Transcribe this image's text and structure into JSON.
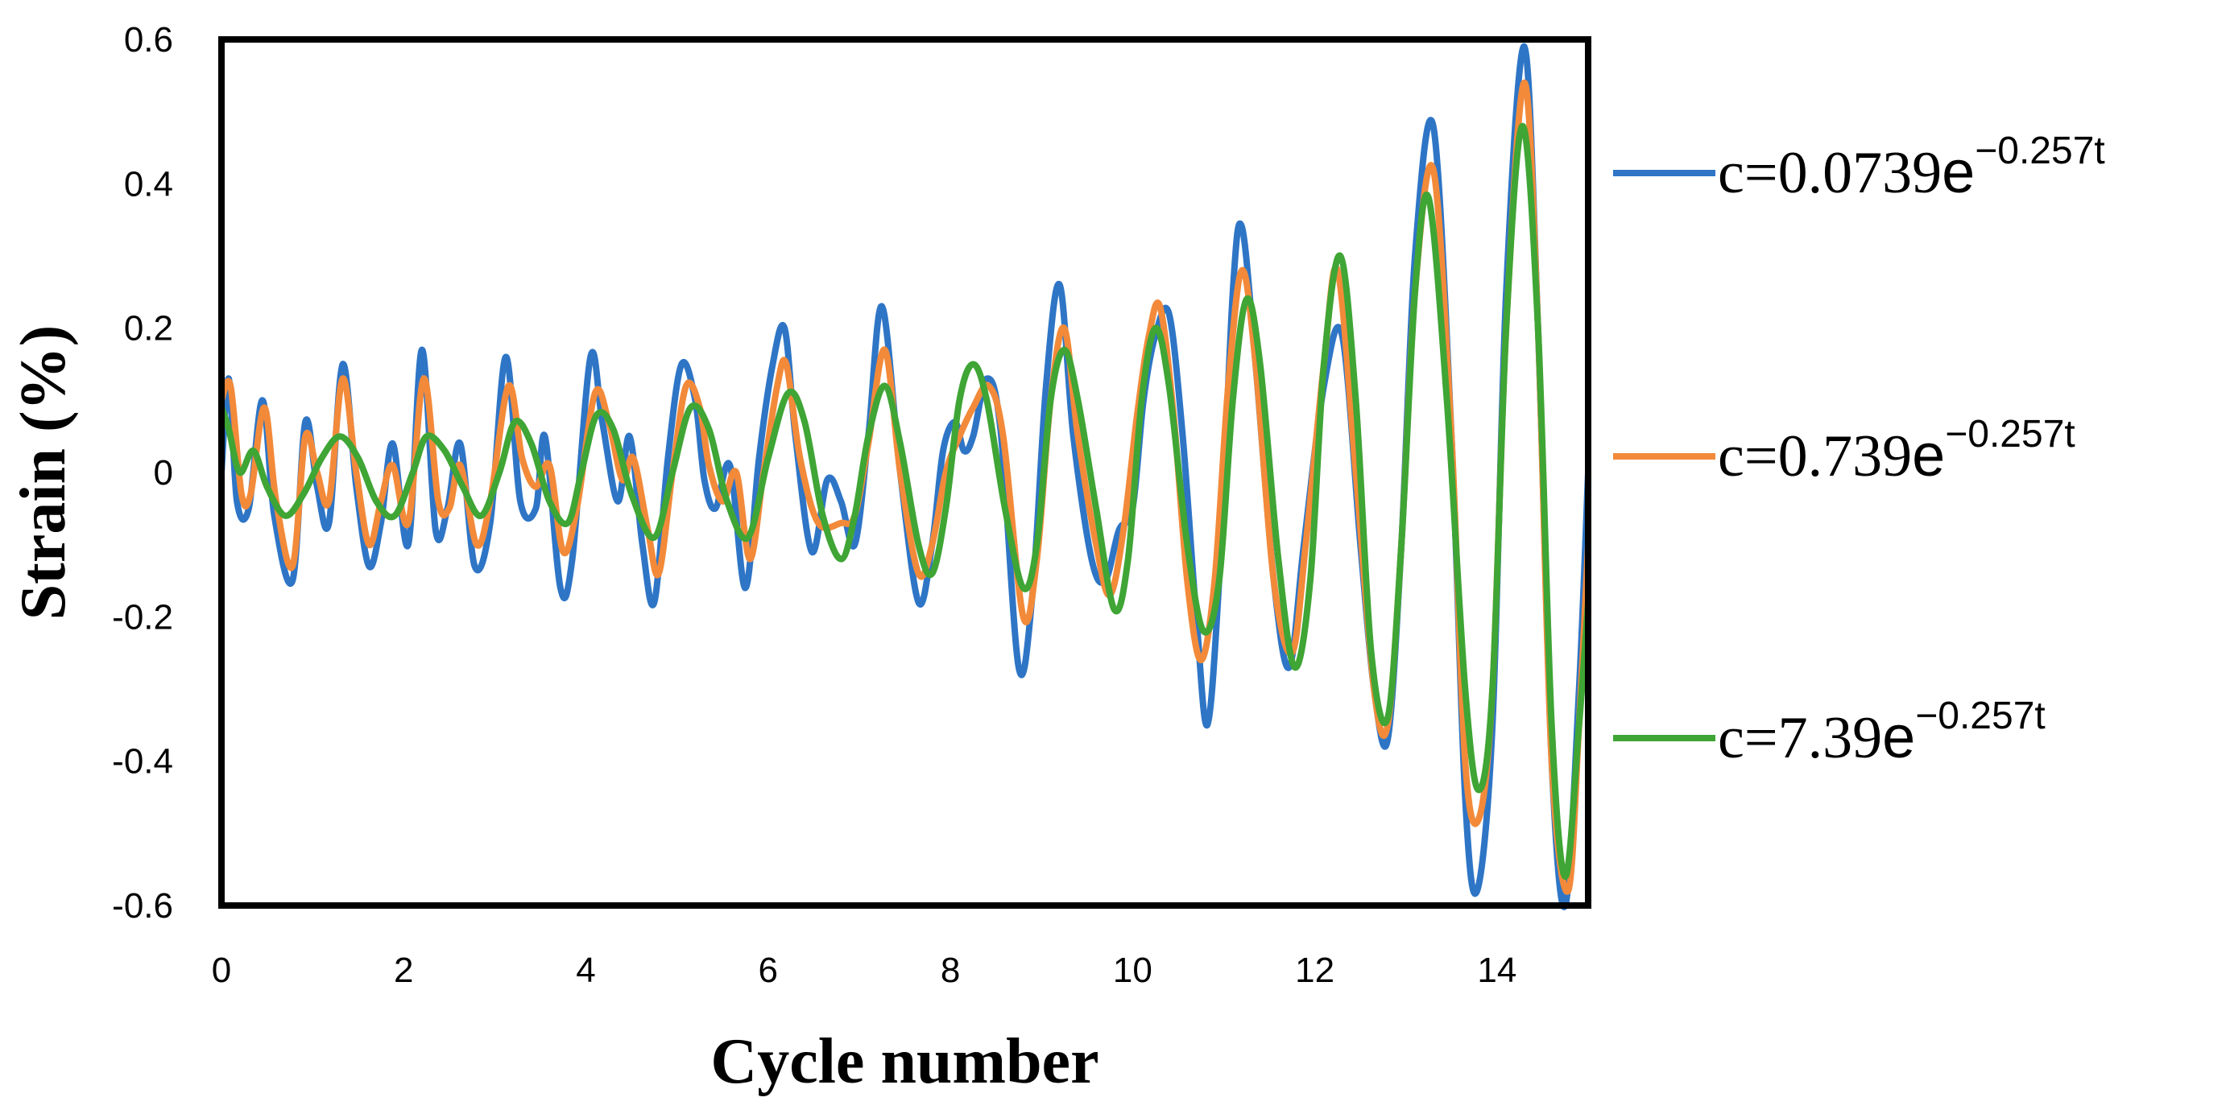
{
  "chart_data": {
    "type": "line",
    "title": "",
    "xlabel": "Cycle number",
    "ylabel": "Strain (%)",
    "xlim": [
      0,
      15
    ],
    "ylim": [
      -0.6,
      0.6
    ],
    "x_ticks": [
      0,
      2,
      4,
      6,
      8,
      10,
      12,
      14
    ],
    "x_tick_labels": [
      "0",
      "2",
      "4",
      "6",
      "8",
      "10",
      "12",
      "14"
    ],
    "y_ticks": [
      0.6,
      0.4,
      0.2,
      0,
      -0.2,
      -0.4,
      -0.6
    ],
    "y_tick_labels": [
      "0.6",
      "0.4",
      "0.2",
      "0",
      "-0.2",
      "-0.4",
      "-0.6"
    ],
    "grid": false,
    "legend_position": "right",
    "series": [
      {
        "name": "c=0.0739e^(−0.257t)",
        "legend_base": "c=0.0739",
        "legend_e": "e",
        "legend_exp": "−0.257t",
        "color": "#2E75C6",
        "points": [
          [
            0.0,
            0.0
          ],
          [
            0.08,
            0.13
          ],
          [
            0.17,
            -0.04
          ],
          [
            0.3,
            -0.05
          ],
          [
            0.45,
            0.1
          ],
          [
            0.58,
            -0.06
          ],
          [
            0.78,
            -0.15
          ],
          [
            0.92,
            0.07
          ],
          [
            1.05,
            -0.02
          ],
          [
            1.18,
            -0.07
          ],
          [
            1.33,
            0.15
          ],
          [
            1.48,
            -0.02
          ],
          [
            1.62,
            -0.13
          ],
          [
            1.75,
            -0.07
          ],
          [
            1.88,
            0.04
          ],
          [
            2.05,
            -0.1
          ],
          [
            2.2,
            0.17
          ],
          [
            2.35,
            -0.08
          ],
          [
            2.48,
            -0.05
          ],
          [
            2.62,
            0.04
          ],
          [
            2.78,
            -0.13
          ],
          [
            2.95,
            -0.07
          ],
          [
            3.12,
            0.16
          ],
          [
            3.28,
            -0.04
          ],
          [
            3.45,
            -0.05
          ],
          [
            3.55,
            0.05
          ],
          [
            3.72,
            -0.16
          ],
          [
            3.85,
            -0.12
          ],
          [
            4.05,
            0.16
          ],
          [
            4.18,
            0.07
          ],
          [
            4.35,
            -0.04
          ],
          [
            4.48,
            0.05
          ],
          [
            4.62,
            -0.1
          ],
          [
            4.75,
            -0.18
          ],
          [
            4.9,
            0.02
          ],
          [
            5.05,
            0.15
          ],
          [
            5.2,
            0.1
          ],
          [
            5.3,
            -0.01
          ],
          [
            5.42,
            -0.05
          ],
          [
            5.58,
            0.01
          ],
          [
            5.75,
            -0.16
          ],
          [
            5.9,
            0.02
          ],
          [
            6.05,
            0.15
          ],
          [
            6.18,
            0.2
          ],
          [
            6.3,
            0.05
          ],
          [
            6.48,
            -0.11
          ],
          [
            6.65,
            -0.01
          ],
          [
            6.8,
            -0.04
          ],
          [
            6.95,
            -0.1
          ],
          [
            7.1,
            0.05
          ],
          [
            7.25,
            0.23
          ],
          [
            7.45,
            0.0
          ],
          [
            7.65,
            -0.18
          ],
          [
            7.8,
            -0.1
          ],
          [
            7.92,
            0.03
          ],
          [
            8.05,
            0.07
          ],
          [
            8.15,
            0.03
          ],
          [
            8.25,
            0.05
          ],
          [
            8.4,
            0.13
          ],
          [
            8.55,
            0.06
          ],
          [
            8.75,
            -0.27
          ],
          [
            8.9,
            -0.17
          ],
          [
            9.05,
            0.12
          ],
          [
            9.2,
            0.26
          ],
          [
            9.35,
            0.05
          ],
          [
            9.55,
            -0.12
          ],
          [
            9.7,
            -0.15
          ],
          [
            9.85,
            -0.08
          ],
          [
            10.0,
            -0.05
          ],
          [
            10.12,
            0.1
          ],
          [
            10.25,
            0.19
          ],
          [
            10.4,
            0.22
          ],
          [
            10.55,
            0.05
          ],
          [
            10.7,
            -0.2
          ],
          [
            10.82,
            -0.35
          ],
          [
            10.95,
            -0.15
          ],
          [
            11.1,
            0.25
          ],
          [
            11.2,
            0.34
          ],
          [
            11.35,
            0.15
          ],
          [
            11.55,
            -0.15
          ],
          [
            11.72,
            -0.27
          ],
          [
            11.88,
            -0.1
          ],
          [
            12.1,
            0.12
          ],
          [
            12.3,
            0.19
          ],
          [
            12.5,
            -0.1
          ],
          [
            12.65,
            -0.3
          ],
          [
            12.8,
            -0.37
          ],
          [
            12.95,
            -0.1
          ],
          [
            13.1,
            0.3
          ],
          [
            13.3,
            0.48
          ],
          [
            13.5,
            0.05
          ],
          [
            13.65,
            -0.45
          ],
          [
            13.78,
            -0.58
          ],
          [
            13.95,
            -0.35
          ],
          [
            14.1,
            0.25
          ],
          [
            14.3,
            0.59
          ],
          [
            14.45,
            0.2
          ],
          [
            14.6,
            -0.4
          ],
          [
            14.75,
            -0.6
          ],
          [
            14.9,
            -0.3
          ],
          [
            15.0,
            0.0
          ]
        ]
      },
      {
        "name": "c=0.739e^(−0.257t)",
        "legend_base": "c=0.739",
        "legend_e": "e",
        "legend_exp": "−0.257t",
        "color": "#F28A3A",
        "points": [
          [
            0.0,
            0.1
          ],
          [
            0.1,
            0.12
          ],
          [
            0.22,
            -0.03
          ],
          [
            0.32,
            -0.03
          ],
          [
            0.47,
            0.09
          ],
          [
            0.6,
            -0.04
          ],
          [
            0.78,
            -0.13
          ],
          [
            0.92,
            0.05
          ],
          [
            1.05,
            0.0
          ],
          [
            1.18,
            -0.04
          ],
          [
            1.33,
            0.13
          ],
          [
            1.48,
            0.0
          ],
          [
            1.62,
            -0.1
          ],
          [
            1.75,
            -0.04
          ],
          [
            1.88,
            0.01
          ],
          [
            2.05,
            -0.07
          ],
          [
            2.22,
            0.13
          ],
          [
            2.38,
            -0.04
          ],
          [
            2.5,
            -0.05
          ],
          [
            2.62,
            0.01
          ],
          [
            2.8,
            -0.1
          ],
          [
            2.95,
            -0.04
          ],
          [
            3.15,
            0.12
          ],
          [
            3.3,
            0.02
          ],
          [
            3.45,
            -0.02
          ],
          [
            3.6,
            0.01
          ],
          [
            3.75,
            -0.11
          ],
          [
            3.9,
            -0.05
          ],
          [
            4.1,
            0.11
          ],
          [
            4.25,
            0.07
          ],
          [
            4.4,
            -0.01
          ],
          [
            4.52,
            0.02
          ],
          [
            4.68,
            -0.08
          ],
          [
            4.8,
            -0.14
          ],
          [
            4.95,
            0.0
          ],
          [
            5.1,
            0.12
          ],
          [
            5.25,
            0.09
          ],
          [
            5.35,
            0.01
          ],
          [
            5.5,
            -0.04
          ],
          [
            5.65,
            0.0
          ],
          [
            5.8,
            -0.12
          ],
          [
            5.95,
            0.0
          ],
          [
            6.1,
            0.12
          ],
          [
            6.2,
            0.15
          ],
          [
            6.35,
            0.02
          ],
          [
            6.55,
            -0.07
          ],
          [
            6.8,
            -0.07
          ],
          [
            6.95,
            -0.06
          ],
          [
            7.1,
            0.04
          ],
          [
            7.28,
            0.17
          ],
          [
            7.45,
            0.0
          ],
          [
            7.65,
            -0.14
          ],
          [
            7.8,
            -0.1
          ],
          [
            7.95,
            0.0
          ],
          [
            8.1,
            0.05
          ],
          [
            8.25,
            0.09
          ],
          [
            8.42,
            0.12
          ],
          [
            8.58,
            0.05
          ],
          [
            8.8,
            -0.2
          ],
          [
            8.95,
            -0.12
          ],
          [
            9.1,
            0.1
          ],
          [
            9.25,
            0.2
          ],
          [
            9.4,
            0.05
          ],
          [
            9.6,
            -0.1
          ],
          [
            9.75,
            -0.17
          ],
          [
            9.9,
            -0.08
          ],
          [
            10.05,
            0.08
          ],
          [
            10.18,
            0.19
          ],
          [
            10.3,
            0.23
          ],
          [
            10.45,
            0.08
          ],
          [
            10.6,
            -0.15
          ],
          [
            10.75,
            -0.26
          ],
          [
            10.9,
            -0.15
          ],
          [
            11.05,
            0.12
          ],
          [
            11.2,
            0.28
          ],
          [
            11.35,
            0.15
          ],
          [
            11.55,
            -0.15
          ],
          [
            11.75,
            -0.25
          ],
          [
            11.9,
            -0.1
          ],
          [
            12.1,
            0.15
          ],
          [
            12.25,
            0.28
          ],
          [
            12.45,
            0.0
          ],
          [
            12.65,
            -0.3
          ],
          [
            12.8,
            -0.35
          ],
          [
            12.95,
            -0.1
          ],
          [
            13.1,
            0.25
          ],
          [
            13.3,
            0.42
          ],
          [
            13.5,
            0.05
          ],
          [
            13.65,
            -0.4
          ],
          [
            13.8,
            -0.48
          ],
          [
            13.95,
            -0.3
          ],
          [
            14.1,
            0.2
          ],
          [
            14.3,
            0.54
          ],
          [
            14.45,
            0.2
          ],
          [
            14.6,
            -0.4
          ],
          [
            14.78,
            -0.58
          ],
          [
            14.9,
            -0.35
          ],
          [
            15.0,
            -0.1
          ]
        ]
      },
      {
        "name": "c=7.39e^(−0.257t)",
        "legend_base": "c=7.39",
        "legend_e": "e",
        "legend_exp": "−0.257t",
        "color": "#3FA535",
        "points": [
          [
            0.0,
            0.09
          ],
          [
            0.08,
            0.06
          ],
          [
            0.2,
            0.0
          ],
          [
            0.35,
            0.03
          ],
          [
            0.5,
            -0.02
          ],
          [
            0.7,
            -0.06
          ],
          [
            0.9,
            -0.03
          ],
          [
            1.1,
            0.02
          ],
          [
            1.3,
            0.05
          ],
          [
            1.5,
            0.02
          ],
          [
            1.7,
            -0.04
          ],
          [
            1.9,
            -0.06
          ],
          [
            2.1,
            0.0
          ],
          [
            2.25,
            0.05
          ],
          [
            2.45,
            0.03
          ],
          [
            2.65,
            -0.02
          ],
          [
            2.85,
            -0.06
          ],
          [
            3.05,
            0.0
          ],
          [
            3.22,
            0.07
          ],
          [
            3.4,
            0.04
          ],
          [
            3.6,
            -0.04
          ],
          [
            3.8,
            -0.07
          ],
          [
            3.95,
            0.0
          ],
          [
            4.12,
            0.08
          ],
          [
            4.3,
            0.06
          ],
          [
            4.5,
            -0.03
          ],
          [
            4.75,
            -0.09
          ],
          [
            4.95,
            0.0
          ],
          [
            5.15,
            0.09
          ],
          [
            5.35,
            0.06
          ],
          [
            5.55,
            -0.04
          ],
          [
            5.78,
            -0.09
          ],
          [
            6.0,
            0.02
          ],
          [
            6.22,
            0.11
          ],
          [
            6.4,
            0.07
          ],
          [
            6.6,
            -0.06
          ],
          [
            6.8,
            -0.12
          ],
          [
            6.95,
            -0.06
          ],
          [
            7.1,
            0.05
          ],
          [
            7.28,
            0.12
          ],
          [
            7.45,
            0.04
          ],
          [
            7.65,
            -0.1
          ],
          [
            7.8,
            -0.14
          ],
          [
            7.95,
            -0.05
          ],
          [
            8.1,
            0.1
          ],
          [
            8.25,
            0.15
          ],
          [
            8.4,
            0.1
          ],
          [
            8.6,
            -0.05
          ],
          [
            8.8,
            -0.16
          ],
          [
            8.95,
            -0.1
          ],
          [
            9.1,
            0.1
          ],
          [
            9.25,
            0.17
          ],
          [
            9.4,
            0.1
          ],
          [
            9.6,
            -0.05
          ],
          [
            9.8,
            -0.19
          ],
          [
            9.95,
            -0.12
          ],
          [
            10.1,
            0.1
          ],
          [
            10.25,
            0.2
          ],
          [
            10.4,
            0.12
          ],
          [
            10.6,
            -0.1
          ],
          [
            10.78,
            -0.22
          ],
          [
            10.95,
            -0.15
          ],
          [
            11.1,
            0.1
          ],
          [
            11.25,
            0.24
          ],
          [
            11.4,
            0.15
          ],
          [
            11.6,
            -0.12
          ],
          [
            11.78,
            -0.27
          ],
          [
            11.95,
            -0.15
          ],
          [
            12.1,
            0.15
          ],
          [
            12.28,
            0.3
          ],
          [
            12.45,
            0.1
          ],
          [
            12.62,
            -0.25
          ],
          [
            12.8,
            -0.34
          ],
          [
            12.95,
            -0.1
          ],
          [
            13.1,
            0.25
          ],
          [
            13.25,
            0.38
          ],
          [
            13.45,
            0.1
          ],
          [
            13.65,
            -0.3
          ],
          [
            13.8,
            -0.44
          ],
          [
            13.95,
            -0.3
          ],
          [
            14.1,
            0.2
          ],
          [
            14.28,
            0.48
          ],
          [
            14.45,
            0.2
          ],
          [
            14.6,
            -0.35
          ],
          [
            14.75,
            -0.56
          ],
          [
            14.9,
            -0.35
          ],
          [
            15.0,
            -0.18
          ]
        ]
      }
    ]
  }
}
